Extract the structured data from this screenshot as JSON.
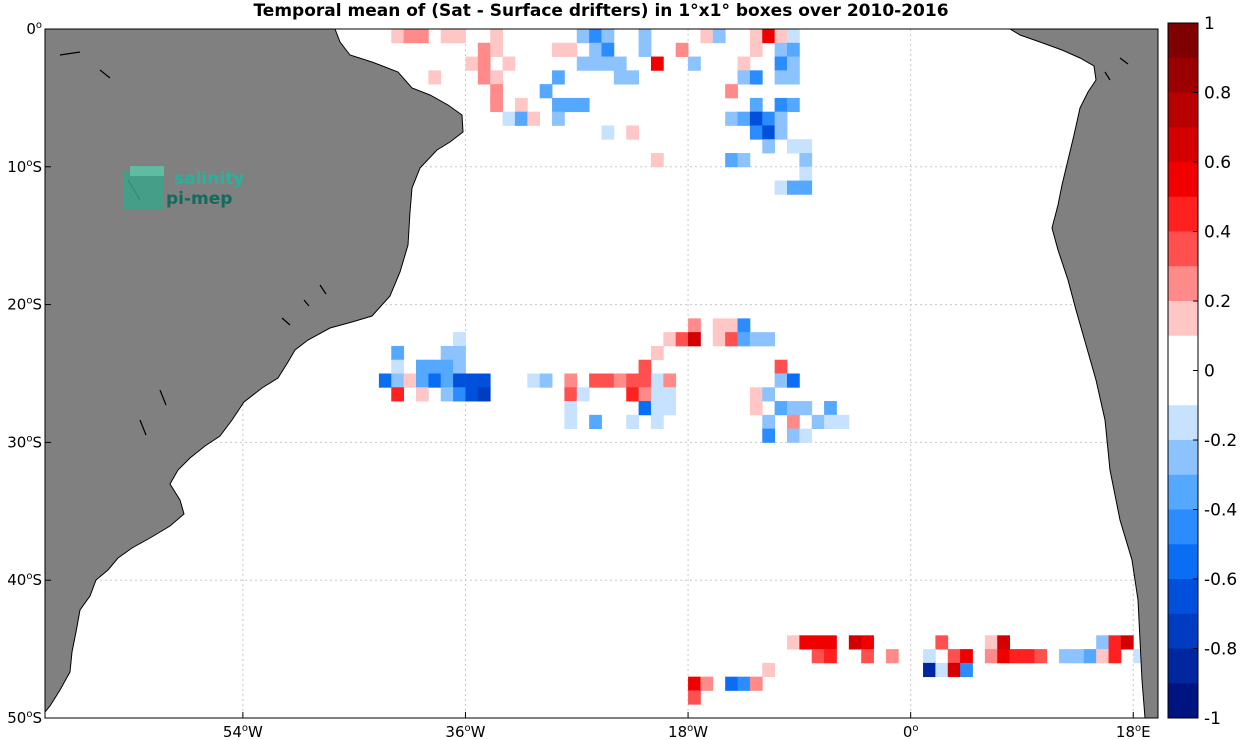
{
  "title": "Temporal mean of (Sat - Surface drifters) in 1°x1° boxes over 2010-2016",
  "logo": {
    "line1": "salinity",
    "line2": "pi-mep"
  },
  "map": {
    "lon_range": [
      -70,
      20
    ],
    "lat_range": [
      -50,
      0
    ],
    "land_color": "#808080",
    "ocean_color": "#ffffff",
    "grid": "dotted"
  },
  "axes": {
    "lon_ticks": [
      {
        "value": -54,
        "label": "54",
        "unit": "o",
        "hemi": "W"
      },
      {
        "value": -36,
        "label": "36",
        "unit": "o",
        "hemi": "W"
      },
      {
        "value": -18,
        "label": "18",
        "unit": "o",
        "hemi": "W"
      },
      {
        "value": 0,
        "label": "0",
        "unit": "o",
        "hemi": ""
      },
      {
        "value": 18,
        "label": "18",
        "unit": "o",
        "hemi": "E"
      }
    ],
    "lat_ticks": [
      {
        "value": 0,
        "label": "0",
        "unit": "o",
        "hemi": ""
      },
      {
        "value": -10,
        "label": "10",
        "unit": "o",
        "hemi": "S"
      },
      {
        "value": -20,
        "label": "20",
        "unit": "o",
        "hemi": "S"
      },
      {
        "value": -30,
        "label": "30",
        "unit": "o",
        "hemi": "S"
      },
      {
        "value": -40,
        "label": "40",
        "unit": "o",
        "hemi": "S"
      },
      {
        "value": -50,
        "label": "50",
        "unit": "o",
        "hemi": "S"
      }
    ]
  },
  "colorbar": {
    "range": [
      -1,
      1
    ],
    "tick_labels": [
      "1",
      "0.8",
      "0.6",
      "0.4",
      "0.2",
      "0",
      "-0.2",
      "-0.4",
      "-0.6",
      "-0.8",
      "-1"
    ],
    "colors_top_to_bottom": [
      "#7f0000",
      "#9b0000",
      "#b80000",
      "#d40000",
      "#f10000",
      "#ff2020",
      "#ff5050",
      "#ff8a8a",
      "#ffc6c6",
      "#ffffff",
      "#ffffff",
      "#c6e2ff",
      "#8cc3ff",
      "#55a8ff",
      "#2a8cff",
      "#0a6ef5",
      "#0050dc",
      "#003cc0",
      "#0027a0",
      "#001480"
    ]
  },
  "chart_data": {
    "type": "heatmap",
    "title": "Temporal mean of (Sat - Surface drifters) in 1°x1° boxes over 2010-2016",
    "xlabel": "",
    "ylabel": "",
    "xlim": [
      -70,
      20
    ],
    "ylim": [
      -50,
      0
    ],
    "colorbar_range": [
      -1,
      1
    ],
    "cells": [
      [
        -42,
        -1,
        0.2
      ],
      [
        -41,
        -1,
        0.3
      ],
      [
        -40,
        -1,
        0.3
      ],
      [
        -38,
        -1,
        0.2
      ],
      [
        -37,
        -1,
        0.2
      ],
      [
        -34,
        -1,
        0.2
      ],
      [
        -27,
        -1,
        -0.2
      ],
      [
        -26,
        -1,
        -0.4
      ],
      [
        -25,
        -1,
        -0.2
      ],
      [
        -22,
        -1,
        -0.2
      ],
      [
        -17,
        -1,
        0.2
      ],
      [
        -16,
        -1,
        -0.2
      ],
      [
        -13,
        -1,
        0.2
      ],
      [
        -12,
        -1,
        0.6
      ],
      [
        -11,
        -1,
        0.2
      ],
      [
        -10,
        -1,
        -0.1
      ],
      [
        -35,
        -2,
        0.3
      ],
      [
        -34,
        -2,
        0.2
      ],
      [
        -29,
        -2,
        0.2
      ],
      [
        -28,
        -2,
        0.2
      ],
      [
        -26,
        -2,
        -0.2
      ],
      [
        -25,
        -2,
        -0.4
      ],
      [
        -22,
        -2,
        -0.2
      ],
      [
        -19,
        -2,
        0.3
      ],
      [
        -13,
        -2,
        0.2
      ],
      [
        -11,
        -2,
        -0.2
      ],
      [
        -10,
        -2,
        -0.3
      ],
      [
        -36,
        -3,
        0.2
      ],
      [
        -35,
        -3,
        0.3
      ],
      [
        -33,
        -3,
        0.2
      ],
      [
        -27,
        -3,
        -0.2
      ],
      [
        -26,
        -3,
        -0.2
      ],
      [
        -25,
        -3,
        -0.2
      ],
      [
        -24,
        -3,
        -0.2
      ],
      [
        -21,
        -3,
        0.6
      ],
      [
        -18,
        -3,
        -0.2
      ],
      [
        -14,
        -3,
        0.2
      ],
      [
        -11,
        -3,
        -0.4
      ],
      [
        -10,
        -3,
        -0.2
      ],
      [
        -39,
        -4,
        0.2
      ],
      [
        -35,
        -4,
        0.3
      ],
      [
        -34,
        -4,
        0.2
      ],
      [
        -29,
        -4,
        -0.3
      ],
      [
        -24,
        -4,
        -0.2
      ],
      [
        -23,
        -4,
        -0.2
      ],
      [
        -14,
        -4,
        -0.2
      ],
      [
        -13,
        -4,
        -0.4
      ],
      [
        -11,
        -4,
        -0.2
      ],
      [
        -10,
        -4,
        -0.2
      ],
      [
        -34,
        -5,
        0.3
      ],
      [
        -30,
        -5,
        -0.3
      ],
      [
        -15,
        -5,
        0.3
      ],
      [
        -34,
        -6,
        0.3
      ],
      [
        -32,
        -6,
        0.2
      ],
      [
        -29,
        -6,
        -0.3
      ],
      [
        -28,
        -6,
        -0.3
      ],
      [
        -27,
        -6,
        -0.3
      ],
      [
        -13,
        -6,
        -0.3
      ],
      [
        -11,
        -6,
        -0.4
      ],
      [
        -10,
        -6,
        -0.3
      ],
      [
        -33,
        -7,
        -0.1
      ],
      [
        -32,
        -7,
        -0.3
      ],
      [
        -31,
        -7,
        0.2
      ],
      [
        -29,
        -7,
        -0.2
      ],
      [
        -15,
        -7,
        -0.2
      ],
      [
        -14,
        -7,
        -0.3
      ],
      [
        -13,
        -7,
        -0.6
      ],
      [
        -12,
        -7,
        -0.4
      ],
      [
        -11,
        -7,
        -0.2
      ],
      [
        -25,
        -8,
        -0.1
      ],
      [
        -23,
        -8,
        0.2
      ],
      [
        -13,
        -8,
        -0.4
      ],
      [
        -12,
        -8,
        -0.6
      ],
      [
        -11,
        -8,
        -0.2
      ],
      [
        -12,
        -9,
        -0.2
      ],
      [
        -10,
        -9,
        -0.1
      ],
      [
        -9,
        -9,
        -0.1
      ],
      [
        -21,
        -10,
        0.2
      ],
      [
        -15,
        -10,
        -0.3
      ],
      [
        -14,
        -10,
        -0.2
      ],
      [
        -9,
        -10,
        -0.2
      ],
      [
        -9,
        -11,
        -0.1
      ],
      [
        -11,
        -12,
        -0.1
      ],
      [
        -10,
        -12,
        -0.3
      ],
      [
        -9,
        -12,
        -0.3
      ],
      [
        -18,
        -22,
        0.3
      ],
      [
        -16,
        -22,
        0.2
      ],
      [
        -15,
        -22,
        0.2
      ],
      [
        -14,
        -22,
        -0.4
      ],
      [
        -20,
        -23,
        0.2
      ],
      [
        -19,
        -23,
        0.4
      ],
      [
        -18,
        -23,
        0.7
      ],
      [
        -16,
        -23,
        0.2
      ],
      [
        -15,
        -23,
        0.4
      ],
      [
        -14,
        -23,
        -0.3
      ],
      [
        -13,
        -23,
        -0.2
      ],
      [
        -12,
        -23,
        -0.2
      ],
      [
        -37,
        -23,
        -0.1
      ],
      [
        -38,
        -24,
        -0.2
      ],
      [
        -37,
        -24,
        -0.2
      ],
      [
        -42,
        -24,
        -0.3
      ],
      [
        -21,
        -24,
        0.2
      ],
      [
        -42,
        -25,
        -0.1
      ],
      [
        -40,
        -25,
        -0.3
      ],
      [
        -39,
        -25,
        -0.3
      ],
      [
        -38,
        -25,
        -0.3
      ],
      [
        -37,
        -25,
        -0.2
      ],
      [
        -22,
        -25,
        0.4
      ],
      [
        -11,
        -25,
        0.4
      ],
      [
        -43,
        -26,
        -0.5
      ],
      [
        -42,
        -26,
        -0.2
      ],
      [
        -41,
        -26,
        0.2
      ],
      [
        -40,
        -26,
        -0.3
      ],
      [
        -39,
        -26,
        -0.5
      ],
      [
        -38,
        -26,
        -0.3
      ],
      [
        -37,
        -26,
        -0.6
      ],
      [
        -36,
        -26,
        -0.6
      ],
      [
        -35,
        -26,
        -0.6
      ],
      [
        -31,
        -26,
        -0.1
      ],
      [
        -30,
        -26,
        -0.2
      ],
      [
        -28,
        -26,
        0.3
      ],
      [
        -26,
        -26,
        0.4
      ],
      [
        -25,
        -26,
        0.4
      ],
      [
        -24,
        -26,
        0.3
      ],
      [
        -23,
        -26,
        0.4
      ],
      [
        -22,
        -26,
        0.4
      ],
      [
        -21,
        -26,
        -0.1
      ],
      [
        -20,
        -26,
        0.3
      ],
      [
        -11,
        -26,
        -0.2
      ],
      [
        -10,
        -26,
        -0.5
      ],
      [
        -42,
        -27,
        0.5
      ],
      [
        -40,
        -27,
        0.2
      ],
      [
        -38,
        -27,
        -0.2
      ],
      [
        -37,
        -27,
        -0.4
      ],
      [
        -36,
        -27,
        -0.6
      ],
      [
        -35,
        -27,
        -0.7
      ],
      [
        -28,
        -27,
        0.4
      ],
      [
        -27,
        -27,
        -0.1
      ],
      [
        -23,
        -27,
        0.5
      ],
      [
        -22,
        -27,
        0.3
      ],
      [
        -21,
        -27,
        -0.1
      ],
      [
        -20,
        -27,
        -0.1
      ],
      [
        -13,
        -27,
        0.2
      ],
      [
        -12,
        -27,
        -0.2
      ],
      [
        -28,
        -28,
        -0.1
      ],
      [
        -22,
        -28,
        -0.5
      ],
      [
        -21,
        -28,
        -0.1
      ],
      [
        -20,
        -28,
        -0.1
      ],
      [
        -13,
        -28,
        0.2
      ],
      [
        -11,
        -28,
        -0.3
      ],
      [
        -10,
        -28,
        -0.2
      ],
      [
        -9,
        -28,
        -0.2
      ],
      [
        -7,
        -28,
        -0.3
      ],
      [
        -28,
        -29,
        -0.1
      ],
      [
        -26,
        -29,
        -0.3
      ],
      [
        -23,
        -29,
        -0.1
      ],
      [
        -21,
        -29,
        -0.1
      ],
      [
        -12,
        -29,
        -0.2
      ],
      [
        -10,
        -29,
        0.3
      ],
      [
        -8,
        -29,
        -0.2
      ],
      [
        -7,
        -29,
        -0.1
      ],
      [
        -6,
        -29,
        -0.1
      ],
      [
        -12,
        -30,
        -0.4
      ],
      [
        -10,
        -30,
        -0.2
      ],
      [
        -9,
        -30,
        -0.1
      ],
      [
        -10,
        -45,
        0.2
      ],
      [
        -9,
        -45,
        0.6
      ],
      [
        -8,
        -45,
        0.6
      ],
      [
        -7,
        -45,
        0.6
      ],
      [
        -5,
        -45,
        0.7
      ],
      [
        -4,
        -45,
        0.6
      ],
      [
        2,
        -45,
        0.4
      ],
      [
        6,
        -45,
        0.2
      ],
      [
        7,
        -45,
        0.7
      ],
      [
        15,
        -45,
        -0.2
      ],
      [
        16,
        -45,
        0.5
      ],
      [
        17,
        -45,
        0.7
      ],
      [
        -8,
        -46,
        0.4
      ],
      [
        -7,
        -46,
        0.5
      ],
      [
        -4,
        -46,
        0.4
      ],
      [
        -2,
        -46,
        0.3
      ],
      [
        1,
        -46,
        -0.1
      ],
      [
        3,
        -46,
        0.4
      ],
      [
        4,
        -46,
        0.6
      ],
      [
        6,
        -46,
        0.3
      ],
      [
        7,
        -46,
        0.6
      ],
      [
        8,
        -46,
        0.5
      ],
      [
        9,
        -46,
        0.5
      ],
      [
        10,
        -46,
        0.4
      ],
      [
        12,
        -46,
        -0.2
      ],
      [
        13,
        -46,
        -0.2
      ],
      [
        14,
        -46,
        -0.3
      ],
      [
        15,
        -46,
        0.2
      ],
      [
        16,
        -46,
        0.5
      ],
      [
        18,
        -46,
        -0.1
      ],
      [
        19,
        -46,
        -0.4
      ],
      [
        -12,
        -47,
        0.2
      ],
      [
        1,
        -47,
        -0.8
      ],
      [
        2,
        -47,
        -0.1
      ],
      [
        3,
        -47,
        0.7
      ],
      [
        4,
        -47,
        -0.4
      ],
      [
        -18,
        -48,
        0.6
      ],
      [
        -17,
        -48,
        0.3
      ],
      [
        -15,
        -48,
        -0.5
      ],
      [
        -14,
        -48,
        -0.4
      ],
      [
        -13,
        -48,
        0.3
      ],
      [
        -18,
        -49,
        0.4
      ]
    ]
  }
}
